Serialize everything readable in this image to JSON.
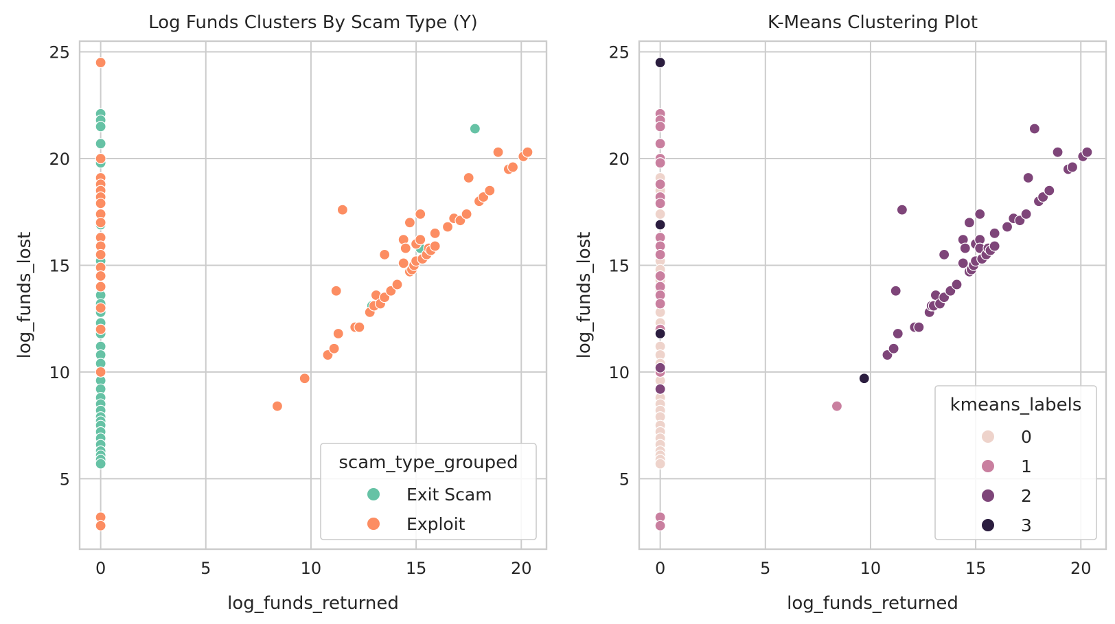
{
  "chart_data": [
    {
      "type": "scatter",
      "title": "Log Funds Clusters By Scam Type (Y)",
      "xlabel": "log_funds_returned",
      "ylabel": "log_funds_lost",
      "xlim": [
        -1,
        21.2
      ],
      "ylim": [
        1.7,
        25.5
      ],
      "xticks": [
        0,
        5,
        10,
        15,
        20
      ],
      "yticks": [
        5,
        10,
        15,
        20,
        25
      ],
      "grid": true,
      "legend": {
        "title": "scam_type_grouped",
        "placement": "lower-right"
      },
      "series": [
        {
          "name": "Exit Scam",
          "color": "#66c2a5",
          "points": [
            [
              0,
              22.1
            ],
            [
              0,
              21.8
            ],
            [
              0,
              21.5
            ],
            [
              0,
              20.7
            ],
            [
              0,
              19.8
            ],
            [
              0,
              16.9
            ],
            [
              0,
              15.2
            ],
            [
              0,
              13.6
            ],
            [
              0,
              13.2
            ],
            [
              0,
              12.8
            ],
            [
              0,
              12.3
            ],
            [
              0,
              11.8
            ],
            [
              0,
              11.2
            ],
            [
              0,
              10.8
            ],
            [
              0,
              10.4
            ],
            [
              0,
              10.0
            ],
            [
              0,
              9.6
            ],
            [
              0,
              9.2
            ],
            [
              0,
              8.8
            ],
            [
              0,
              8.5
            ],
            [
              0,
              8.2
            ],
            [
              0,
              7.9
            ],
            [
              0,
              7.7
            ],
            [
              0,
              7.5
            ],
            [
              0,
              7.2
            ],
            [
              0,
              6.9
            ],
            [
              0,
              6.6
            ],
            [
              0,
              6.3
            ],
            [
              0,
              6.1
            ],
            [
              0,
              5.9
            ],
            [
              0,
              5.7
            ],
            [
              12.9,
              13.1
            ],
            [
              17.8,
              21.4
            ],
            [
              15.2,
              15.8
            ]
          ]
        },
        {
          "name": "Exploit",
          "color": "#fc8d62",
          "points": [
            [
              0,
              24.5
            ],
            [
              0,
              20.0
            ],
            [
              0,
              19.1
            ],
            [
              0,
              18.8
            ],
            [
              0,
              18.5
            ],
            [
              0,
              18.2
            ],
            [
              0,
              17.9
            ],
            [
              0,
              17.4
            ],
            [
              0,
              17.0
            ],
            [
              0,
              16.3
            ],
            [
              0,
              15.9
            ],
            [
              0,
              15.5
            ],
            [
              0,
              14.9
            ],
            [
              0,
              14.5
            ],
            [
              0,
              14.0
            ],
            [
              0,
              13.0
            ],
            [
              0,
              12.0
            ],
            [
              0,
              10.0
            ],
            [
              0,
              3.2
            ],
            [
              0,
              2.8
            ],
            [
              8.4,
              8.4
            ],
            [
              9.7,
              9.7
            ],
            [
              10.8,
              10.8
            ],
            [
              11.1,
              11.1
            ],
            [
              11.3,
              11.8
            ],
            [
              11.2,
              13.8
            ],
            [
              11.5,
              17.6
            ],
            [
              12.1,
              12.1
            ],
            [
              12.3,
              12.1
            ],
            [
              12.8,
              12.8
            ],
            [
              13.0,
              13.1
            ],
            [
              13.1,
              13.6
            ],
            [
              13.3,
              13.2
            ],
            [
              13.5,
              13.5
            ],
            [
              13.5,
              15.5
            ],
            [
              13.8,
              13.8
            ],
            [
              14.1,
              14.1
            ],
            [
              14.4,
              15.1
            ],
            [
              14.4,
              16.2
            ],
            [
              14.5,
              15.8
            ],
            [
              14.7,
              17.0
            ],
            [
              14.7,
              14.7
            ],
            [
              14.8,
              14.8
            ],
            [
              14.9,
              15.0
            ],
            [
              15.0,
              15.2
            ],
            [
              15.0,
              16.0
            ],
            [
              15.2,
              17.4
            ],
            [
              15.2,
              16.2
            ],
            [
              15.3,
              15.3
            ],
            [
              15.5,
              15.5
            ],
            [
              15.6,
              15.8
            ],
            [
              15.7,
              15.7
            ],
            [
              15.9,
              15.9
            ],
            [
              15.9,
              16.5
            ],
            [
              16.5,
              16.8
            ],
            [
              16.8,
              17.2
            ],
            [
              17.1,
              17.1
            ],
            [
              17.4,
              17.4
            ],
            [
              17.5,
              19.1
            ],
            [
              18.0,
              18.0
            ],
            [
              18.2,
              18.2
            ],
            [
              18.5,
              18.5
            ],
            [
              18.9,
              20.3
            ],
            [
              19.4,
              19.5
            ],
            [
              19.6,
              19.6
            ],
            [
              20.1,
              20.1
            ],
            [
              20.3,
              20.3
            ]
          ]
        }
      ]
    },
    {
      "type": "scatter",
      "title": "K-Means Clustering Plot",
      "xlabel": "log_funds_returned",
      "ylabel": "log_funds_lost",
      "xlim": [
        -1,
        21.2
      ],
      "ylim": [
        1.7,
        25.5
      ],
      "xticks": [
        0,
        5,
        10,
        15,
        20
      ],
      "yticks": [
        5,
        10,
        15,
        20,
        25
      ],
      "grid": true,
      "legend": {
        "title": "kmeans_labels",
        "placement": "lower-right"
      },
      "series": [
        {
          "name": "0",
          "color": "#eed3cb",
          "points": [
            [
              0,
              19.1
            ],
            [
              0,
              18.5
            ],
            [
              0,
              17.4
            ],
            [
              0,
              15.2
            ],
            [
              0,
              14.8
            ],
            [
              0,
              14.3
            ],
            [
              0,
              13.8
            ],
            [
              0,
              12.8
            ],
            [
              0,
              12.3
            ],
            [
              0,
              11.2
            ],
            [
              0,
              10.8
            ],
            [
              0,
              10.4
            ],
            [
              0,
              9.6
            ],
            [
              0,
              9.2
            ],
            [
              0,
              8.8
            ],
            [
              0,
              8.5
            ],
            [
              0,
              8.2
            ],
            [
              0,
              7.9
            ],
            [
              0,
              7.5
            ],
            [
              0,
              7.2
            ],
            [
              0,
              6.9
            ],
            [
              0,
              6.6
            ],
            [
              0,
              6.3
            ],
            [
              0,
              6.1
            ],
            [
              0,
              5.9
            ],
            [
              0,
              5.7
            ]
          ]
        },
        {
          "name": "1",
          "color": "#c97f9f",
          "points": [
            [
              0,
              22.1
            ],
            [
              0,
              21.8
            ],
            [
              0,
              21.5
            ],
            [
              0,
              20.7
            ],
            [
              0,
              20.0
            ],
            [
              0,
              19.8
            ],
            [
              0,
              18.8
            ],
            [
              0,
              18.2
            ],
            [
              0,
              17.9
            ],
            [
              0,
              16.3
            ],
            [
              0,
              15.9
            ],
            [
              0,
              15.5
            ],
            [
              0,
              14.5
            ],
            [
              0,
              14.0
            ],
            [
              0,
              13.6
            ],
            [
              0,
              13.2
            ],
            [
              0,
              12.0
            ],
            [
              0,
              10.0
            ],
            [
              0,
              3.2
            ],
            [
              0,
              2.8
            ],
            [
              8.4,
              8.4
            ]
          ]
        },
        {
          "name": "2",
          "color": "#7e4579",
          "points": [
            [
              0,
              10.2
            ],
            [
              0,
              9.2
            ],
            [
              10.8,
              10.8
            ],
            [
              11.1,
              11.1
            ],
            [
              11.3,
              11.8
            ],
            [
              11.2,
              13.8
            ],
            [
              11.5,
              17.6
            ],
            [
              12.1,
              12.1
            ],
            [
              12.3,
              12.1
            ],
            [
              12.8,
              12.8
            ],
            [
              12.9,
              13.1
            ],
            [
              13.0,
              13.1
            ],
            [
              13.1,
              13.6
            ],
            [
              13.3,
              13.2
            ],
            [
              13.5,
              13.5
            ],
            [
              13.5,
              15.5
            ],
            [
              13.8,
              13.8
            ],
            [
              14.1,
              14.1
            ],
            [
              14.4,
              15.1
            ],
            [
              14.4,
              16.2
            ],
            [
              14.5,
              15.8
            ],
            [
              14.7,
              17.0
            ],
            [
              14.7,
              14.7
            ],
            [
              14.8,
              14.8
            ],
            [
              14.9,
              15.0
            ],
            [
              15.0,
              15.2
            ],
            [
              15.0,
              16.0
            ],
            [
              15.2,
              17.4
            ],
            [
              15.2,
              16.2
            ],
            [
              15.2,
              15.8
            ],
            [
              15.3,
              15.3
            ],
            [
              15.5,
              15.5
            ],
            [
              15.6,
              15.8
            ],
            [
              15.7,
              15.7
            ],
            [
              15.9,
              15.9
            ],
            [
              15.9,
              16.5
            ],
            [
              16.5,
              16.8
            ],
            [
              16.8,
              17.2
            ],
            [
              17.1,
              17.1
            ],
            [
              17.4,
              17.4
            ],
            [
              17.5,
              19.1
            ],
            [
              17.8,
              21.4
            ],
            [
              18.0,
              18.0
            ],
            [
              18.2,
              18.2
            ],
            [
              18.5,
              18.5
            ],
            [
              18.9,
              20.3
            ],
            [
              19.4,
              19.5
            ],
            [
              19.6,
              19.6
            ],
            [
              20.1,
              20.1
            ],
            [
              20.3,
              20.3
            ]
          ]
        },
        {
          "name": "3",
          "color": "#2b1d3f",
          "points": [
            [
              0,
              24.5
            ],
            [
              0,
              16.9
            ],
            [
              0,
              11.8
            ],
            [
              9.7,
              9.7
            ]
          ]
        }
      ]
    }
  ]
}
